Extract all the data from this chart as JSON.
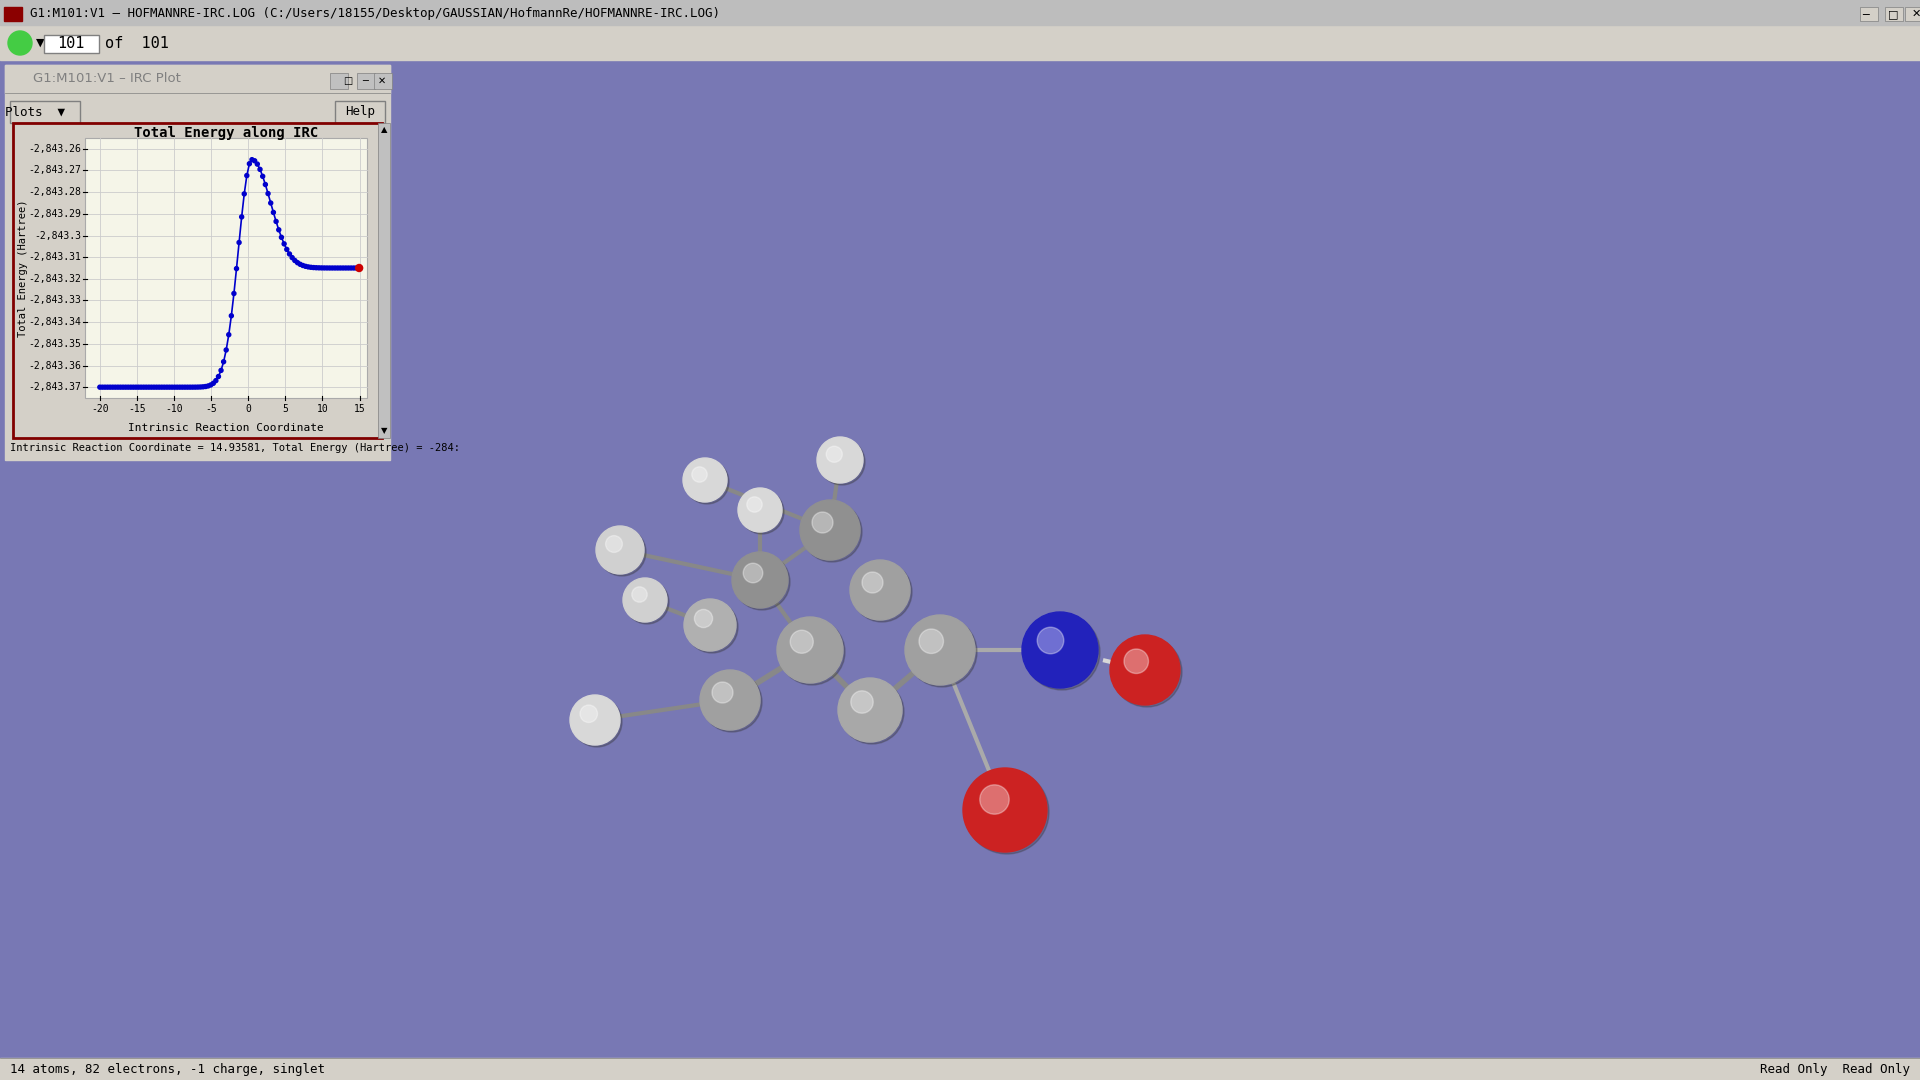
{
  "bg_color": "#7878b4",
  "title_bar_color": "#c0c0c0",
  "title_bar_text": "G1:M101:V1 – HOFMANNRE-IRC.LOG (C:/Users/18155/Desktop/GAUSSIAN/HofmannRe/HOFMANNRE-IRC.LOG)",
  "toolbar_text": "101   of 101",
  "subplot_title_text": "G1:M101:V1 – IRC Plot",
  "plots_btn_text": "Plots",
  "help_btn_text": "Help",
  "plot_title": "Total Energy along IRC",
  "xlabel": "Intrinsic Reaction Coordinate",
  "ylabel": "Total Energy (Hartree)",
  "ytick_labels": [
    "-2,843.26",
    "-2,843.27",
    "-2,843.28",
    "-2,843.29",
    "-2,843.3",
    "-2,843.31",
    "-2,843.32",
    "-2,843.33",
    "-2,843.34",
    "-2,843.35",
    "-2,843.36",
    "-2,843.37"
  ],
  "ytick_vals": [
    -2843.26,
    -2843.27,
    -2843.28,
    -2843.29,
    -2843.3,
    -2843.31,
    -2843.32,
    -2843.33,
    -2843.34,
    -2843.35,
    -2843.36,
    -2843.37
  ],
  "xtick_vals": [
    -20,
    -15,
    -10,
    -5,
    0,
    5,
    10,
    15
  ],
  "xlim": [
    -22,
    16
  ],
  "ylim": [
    -2843.375,
    -2843.255
  ],
  "line_color": "#0000cc",
  "dot_color": "#0000cc",
  "end_dot_color": "#cc0000",
  "status_text": "Intrinsic Reaction Coordinate = 14.93581, Total Energy (Hartree) = -284:",
  "bottom_bar_text": "14 atoms, 82 electrons, -1 charge, singlet",
  "bottom_right_text": "Read Only  Read Only",
  "plot_bg": "#f5f5e8",
  "plot_border_color": "#800000",
  "window_bg": "#d4d0c8"
}
